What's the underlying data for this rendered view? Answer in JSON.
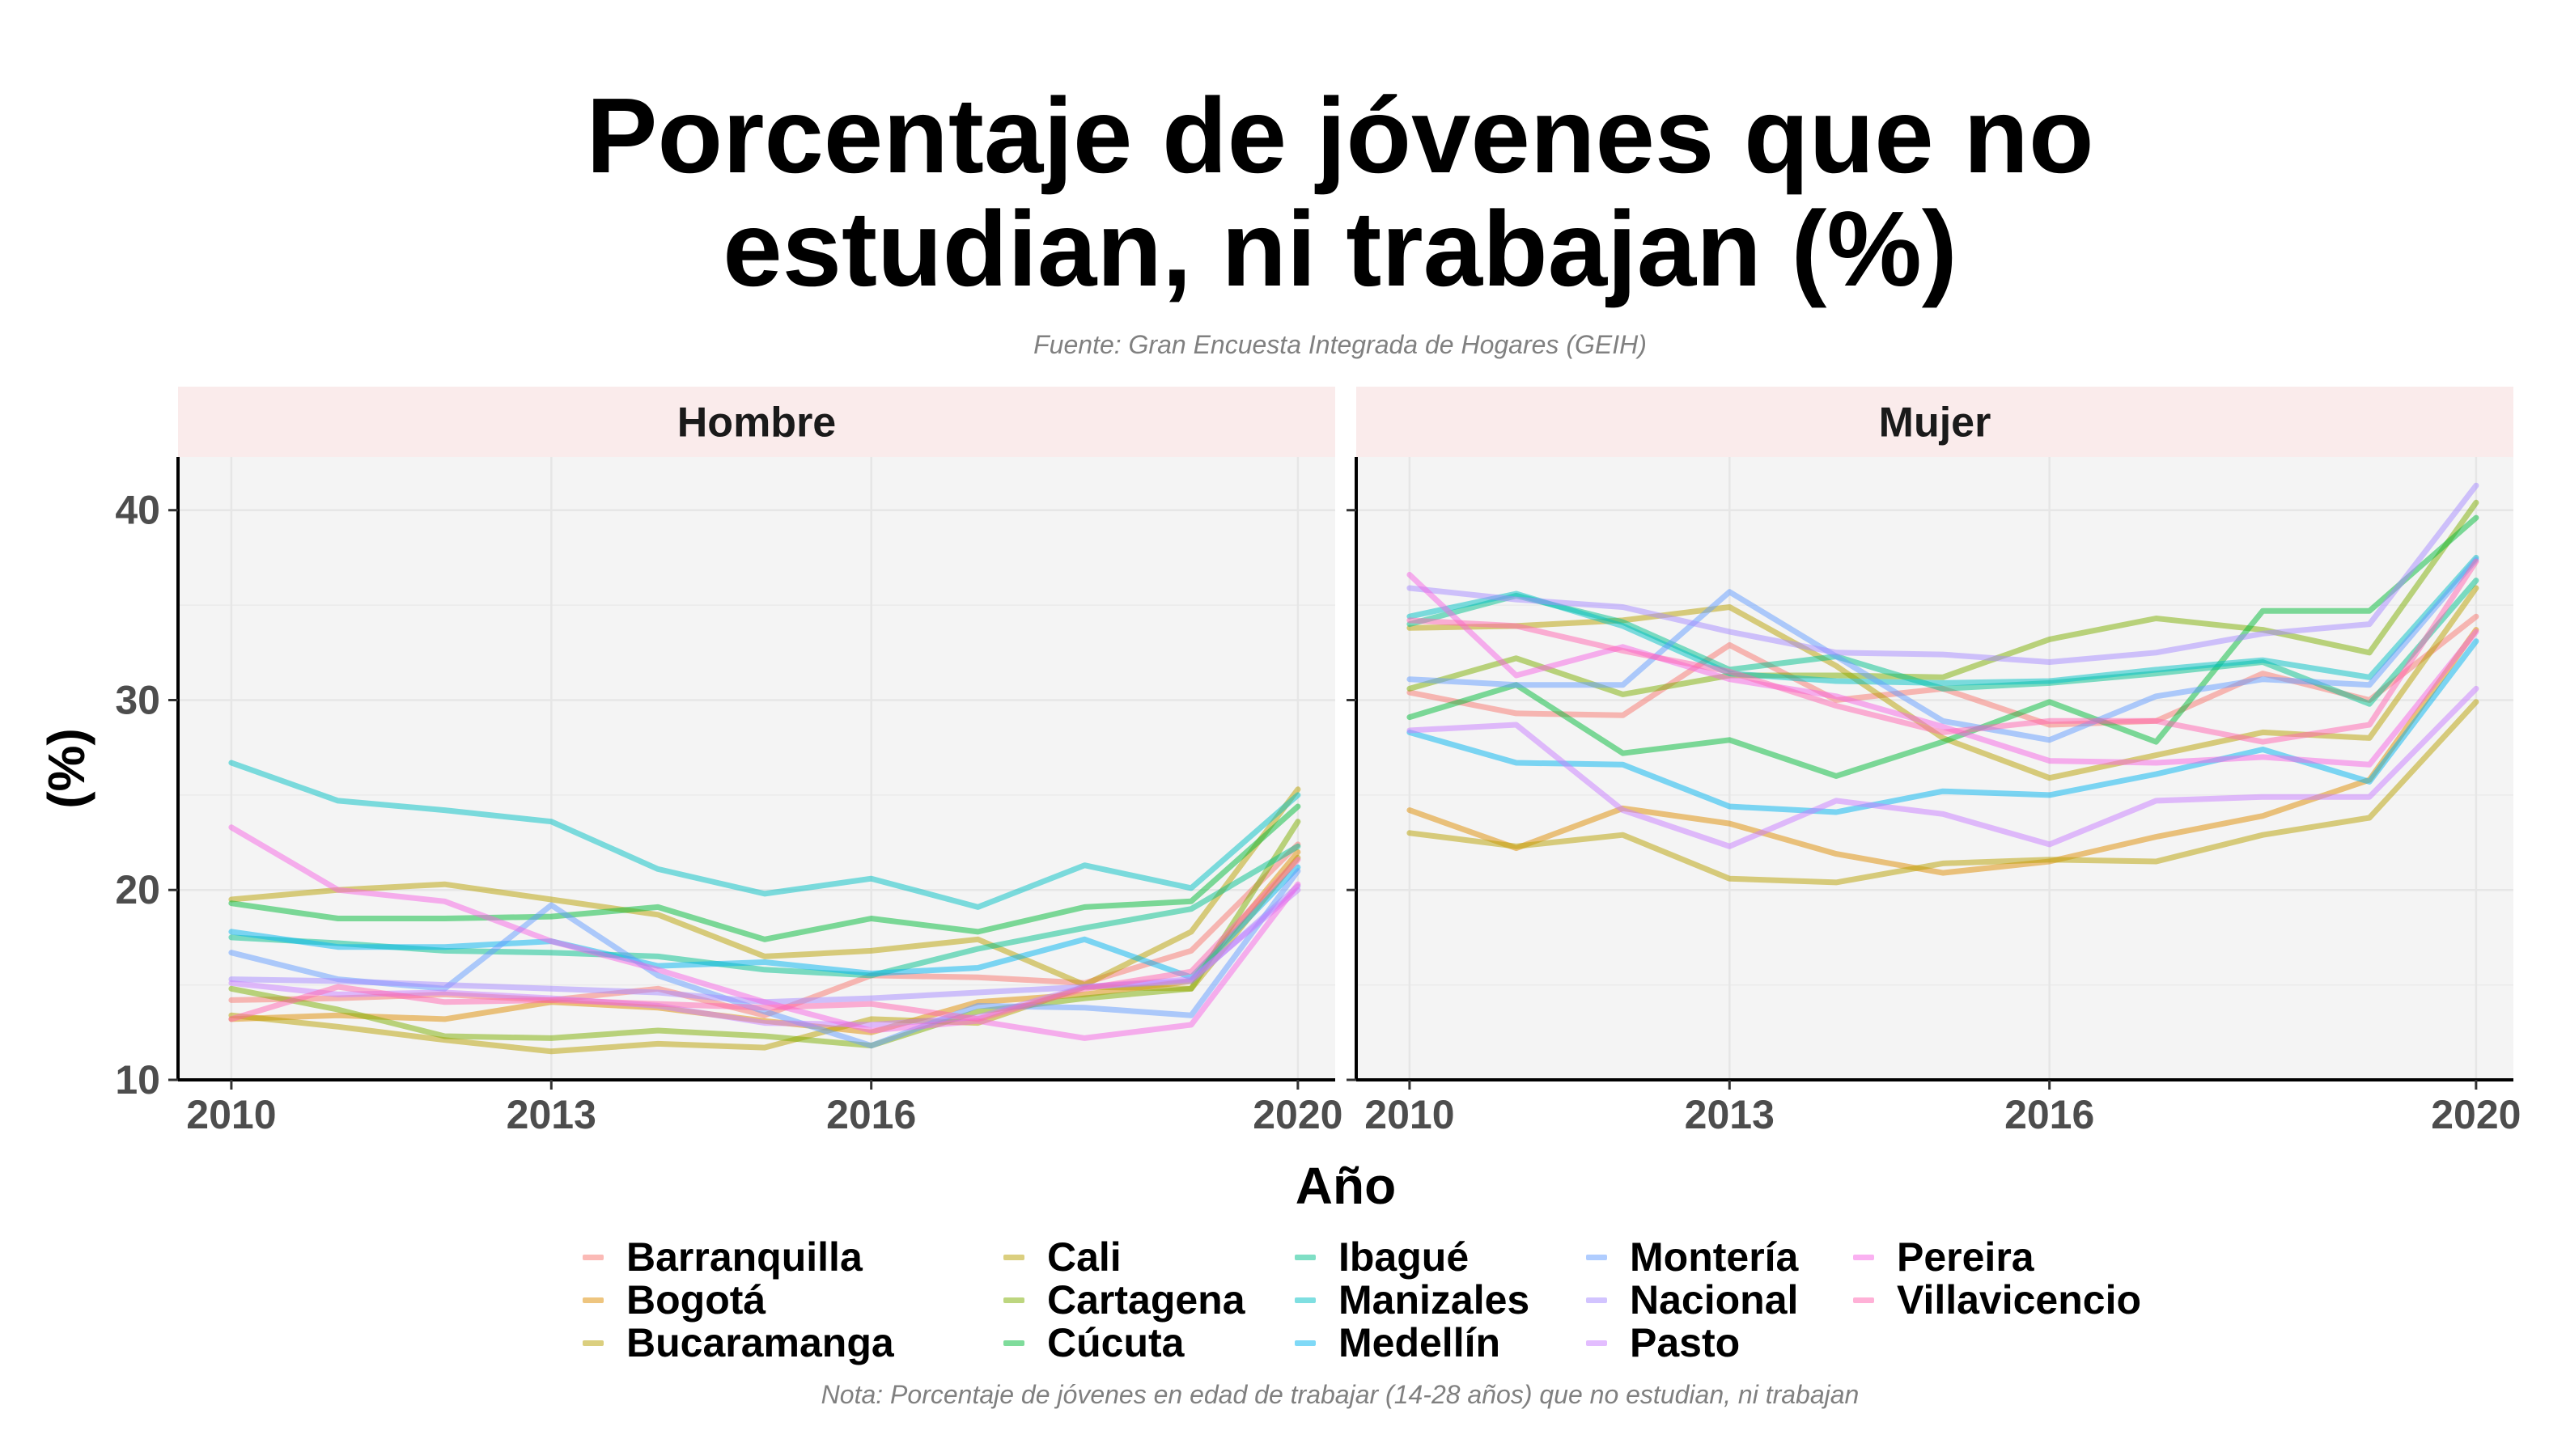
{
  "title_lines": [
    "Porcentaje de jóvenes que no",
    "estudian, ni trabajan (%)"
  ],
  "subtitle": "Fuente: Gran Encuesta Integrada de Hogares (GEIH)",
  "note": "Nota: Porcentaje de jóvenes en edad de trabajar (14-28 años) que no estudian, ni trabajan",
  "chart_data": {
    "type": "line",
    "title": "Porcentaje de jóvenes que no estudian, ni trabajan (%)",
    "xlabel": "Año",
    "ylabel": "(%)",
    "x": [
      2010,
      2011,
      2012,
      2013,
      2014,
      2015,
      2016,
      2017,
      2018,
      2019,
      2020
    ],
    "xticks": [
      2010,
      2013,
      2016,
      2020
    ],
    "yticks": [
      10,
      20,
      30,
      40
    ],
    "xlim": [
      2009.5,
      2020.35
    ],
    "ylim": [
      10,
      42.8
    ],
    "grid": true,
    "legend_position": "bottom",
    "facets": [
      {
        "label": "Hombre",
        "series": [
          {
            "name": "Barranquilla",
            "color": "#F8766D",
            "values": [
              14.2,
              14.3,
              14.5,
              14.2,
              14.8,
              13.4,
              15.5,
              15.4,
              15.1,
              16.8,
              22.4
            ]
          },
          {
            "name": "Bogotá",
            "color": "#DE8C00",
            "values": [
              13.2,
              13.4,
              13.2,
              14.1,
              13.8,
              13.1,
              12.5,
              14.1,
              14.5,
              15.2,
              22.0
            ]
          },
          {
            "name": "Bucaramanga",
            "color": "#B79F00",
            "values": [
              13.4,
              12.8,
              12.1,
              11.5,
              11.9,
              11.7,
              13.2,
              13.0,
              14.9,
              14.8,
              21.7
            ]
          },
          {
            "name": "Cali",
            "color": "#B79F00",
            "values": [
              19.5,
              20.0,
              20.3,
              19.5,
              18.7,
              16.5,
              16.8,
              17.4,
              15.0,
              17.8,
              25.3
            ]
          },
          {
            "name": "Cartagena",
            "color": "#7CAE00",
            "values": [
              14.8,
              13.7,
              12.3,
              12.2,
              12.6,
              12.3,
              11.8,
              13.6,
              14.3,
              14.8,
              23.6
            ]
          },
          {
            "name": "Cúcuta",
            "color": "#00BA38",
            "values": [
              19.3,
              18.5,
              18.5,
              18.6,
              19.1,
              17.4,
              18.5,
              17.8,
              19.1,
              19.4,
              24.4
            ]
          },
          {
            "name": "Ibagué",
            "color": "#00C08B",
            "values": [
              17.5,
              17.2,
              16.8,
              16.7,
              16.5,
              15.8,
              15.5,
              16.9,
              18.0,
              19.0,
              22.3
            ]
          },
          {
            "name": "Manizales",
            "color": "#00BFC4",
            "values": [
              26.7,
              24.7,
              24.2,
              23.6,
              21.1,
              19.8,
              20.6,
              19.1,
              21.3,
              20.1,
              25.0
            ]
          },
          {
            "name": "Medellín",
            "color": "#00B4F0",
            "values": [
              17.8,
              17.0,
              17.0,
              17.3,
              16.0,
              16.2,
              15.6,
              15.9,
              17.4,
              15.4,
              21.2
            ]
          },
          {
            "name": "Montería",
            "color": "#619CFF",
            "values": [
              16.7,
              15.3,
              14.8,
              19.2,
              15.5,
              13.6,
              11.8,
              13.9,
              13.8,
              13.4,
              21.0
            ]
          },
          {
            "name": "Nacional",
            "color": "#A58AFF",
            "values": [
              15.3,
              15.2,
              15.0,
              14.8,
              14.6,
              14.1,
              14.3,
              14.6,
              14.9,
              15.2,
              20.2
            ]
          },
          {
            "name": "Pasto",
            "color": "#C77CFF",
            "values": [
              15.1,
              14.5,
              14.6,
              14.3,
              13.9,
              13.0,
              12.9,
              13.3,
              14.9,
              15.3,
              20.0
            ]
          },
          {
            "name": "Pereira",
            "color": "#F564E3",
            "values": [
              23.3,
              20.0,
              19.4,
              17.3,
              15.8,
              14.1,
              12.6,
              13.1,
              12.2,
              12.9,
              20.3
            ]
          },
          {
            "name": "Villavicencio",
            "color": "#FF64B0",
            "values": [
              13.2,
              14.9,
              14.1,
              14.2,
              14.0,
              13.8,
              14.0,
              13.2,
              14.8,
              15.7,
              21.6
            ]
          }
        ]
      },
      {
        "label": "Mujer",
        "series": [
          {
            "name": "Barranquilla",
            "color": "#F8766D",
            "values": [
              30.4,
              29.3,
              29.2,
              32.9,
              30.0,
              30.6,
              28.7,
              28.9,
              31.4,
              30.0,
              34.4
            ]
          },
          {
            "name": "Bogotá",
            "color": "#DE8C00",
            "values": [
              24.2,
              22.2,
              24.3,
              23.5,
              21.9,
              20.9,
              21.5,
              22.8,
              23.9,
              25.8,
              33.7
            ]
          },
          {
            "name": "Bucaramanga",
            "color": "#B79F00",
            "values": [
              23.0,
              22.3,
              22.9,
              20.6,
              20.4,
              21.4,
              21.6,
              21.5,
              22.9,
              23.8,
              29.9
            ]
          },
          {
            "name": "Cali",
            "color": "#B79F00",
            "values": [
              33.8,
              33.9,
              34.2,
              34.9,
              31.8,
              28.0,
              25.9,
              27.1,
              28.3,
              28.0,
              35.9
            ]
          },
          {
            "name": "Cartagena",
            "color": "#7CAE00",
            "values": [
              30.6,
              32.2,
              30.3,
              31.3,
              31.3,
              31.2,
              33.2,
              34.3,
              33.7,
              32.5,
              40.4
            ]
          },
          {
            "name": "Cúcuta",
            "color": "#00BA38",
            "values": [
              29.1,
              30.8,
              27.2,
              27.9,
              26.0,
              27.8,
              29.9,
              27.8,
              34.7,
              34.7,
              39.6
            ]
          },
          {
            "name": "Ibagué",
            "color": "#00C08B",
            "values": [
              34.0,
              35.5,
              34.1,
              31.6,
              32.3,
              30.6,
              30.9,
              31.4,
              32.0,
              29.8,
              36.3
            ]
          },
          {
            "name": "Manizales",
            "color": "#00BFC4",
            "values": [
              34.4,
              35.6,
              33.9,
              31.4,
              31.0,
              30.9,
              31.0,
              31.6,
              32.1,
              31.2,
              37.5
            ]
          },
          {
            "name": "Medellín",
            "color": "#00B4F0",
            "values": [
              28.3,
              26.7,
              26.6,
              24.4,
              24.1,
              25.2,
              25.0,
              26.1,
              27.4,
              25.7,
              33.1
            ]
          },
          {
            "name": "Montería",
            "color": "#619CFF",
            "values": [
              31.1,
              30.8,
              30.8,
              35.7,
              32.3,
              28.9,
              27.9,
              30.2,
              31.1,
              30.8,
              37.4
            ]
          },
          {
            "name": "Nacional",
            "color": "#A58AFF",
            "values": [
              35.9,
              35.3,
              34.9,
              33.6,
              32.5,
              32.4,
              32.0,
              32.5,
              33.5,
              34.0,
              41.3
            ]
          },
          {
            "name": "Pasto",
            "color": "#C77CFF",
            "values": [
              28.4,
              28.7,
              24.2,
              22.3,
              24.7,
              24.0,
              22.4,
              24.7,
              24.9,
              24.9,
              30.6
            ]
          },
          {
            "name": "Pereira",
            "color": "#F564E3",
            "values": [
              36.6,
              31.3,
              32.8,
              31.1,
              30.2,
              28.6,
              26.8,
              26.7,
              27.0,
              26.6,
              33.6
            ]
          },
          {
            "name": "Villavicencio",
            "color": "#FF64B0",
            "values": [
              34.2,
              33.9,
              32.6,
              31.5,
              29.7,
              28.3,
              28.9,
              28.9,
              27.8,
              28.7,
              37.3
            ]
          }
        ]
      }
    ]
  }
}
